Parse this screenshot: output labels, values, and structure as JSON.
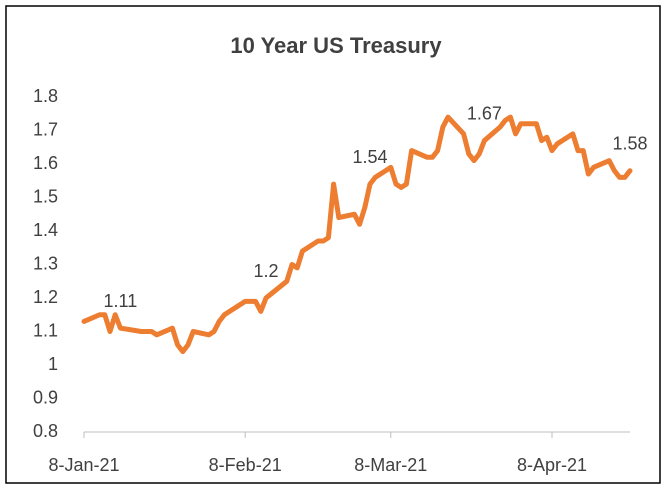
{
  "chart_data": {
    "type": "line",
    "title": "10 Year US Treasury",
    "x": [
      "2021-01-08",
      "2021-01-11",
      "2021-01-12",
      "2021-01-13",
      "2021-01-14",
      "2021-01-15",
      "2021-01-19",
      "2021-01-20",
      "2021-01-21",
      "2021-01-22",
      "2021-01-25",
      "2021-01-26",
      "2021-01-27",
      "2021-01-28",
      "2021-01-29",
      "2021-02-01",
      "2021-02-02",
      "2021-02-03",
      "2021-02-04",
      "2021-02-05",
      "2021-02-08",
      "2021-02-09",
      "2021-02-10",
      "2021-02-11",
      "2021-02-12",
      "2021-02-16",
      "2021-02-17",
      "2021-02-18",
      "2021-02-19",
      "2021-02-22",
      "2021-02-23",
      "2021-02-24",
      "2021-02-25",
      "2021-02-26",
      "2021-03-01",
      "2021-03-02",
      "2021-03-03",
      "2021-03-04",
      "2021-03-05",
      "2021-03-08",
      "2021-03-09",
      "2021-03-10",
      "2021-03-11",
      "2021-03-12",
      "2021-03-15",
      "2021-03-16",
      "2021-03-17",
      "2021-03-18",
      "2021-03-19",
      "2021-03-22",
      "2021-03-23",
      "2021-03-24",
      "2021-03-25",
      "2021-03-26",
      "2021-03-29",
      "2021-03-30",
      "2021-03-31",
      "2021-04-01",
      "2021-04-02",
      "2021-04-05",
      "2021-04-06",
      "2021-04-07",
      "2021-04-08",
      "2021-04-09",
      "2021-04-12",
      "2021-04-13",
      "2021-04-14",
      "2021-04-15",
      "2021-04-16",
      "2021-04-19",
      "2021-04-20",
      "2021-04-21",
      "2021-04-22",
      "2021-04-23"
    ],
    "series": [
      {
        "name": "10 Year US Treasury",
        "color": "#ed7d31",
        "values": [
          1.13,
          1.15,
          1.15,
          1.1,
          1.15,
          1.11,
          1.1,
          1.1,
          1.1,
          1.09,
          1.11,
          1.06,
          1.04,
          1.06,
          1.1,
          1.09,
          1.1,
          1.13,
          1.15,
          1.16,
          1.19,
          1.19,
          1.19,
          1.16,
          1.2,
          1.25,
          1.3,
          1.29,
          1.34,
          1.37,
          1.37,
          1.38,
          1.54,
          1.44,
          1.45,
          1.42,
          1.47,
          1.54,
          1.56,
          1.59,
          1.54,
          1.53,
          1.54,
          1.64,
          1.62,
          1.62,
          1.64,
          1.71,
          1.74,
          1.69,
          1.63,
          1.61,
          1.63,
          1.67,
          1.71,
          1.73,
          1.74,
          1.69,
          1.72,
          1.72,
          1.67,
          1.68,
          1.64,
          1.66,
          1.69,
          1.64,
          1.64,
          1.57,
          1.59,
          1.61,
          1.58,
          1.56,
          1.56,
          1.58
        ]
      }
    ],
    "data_label_indices": [
      5,
      24,
      37,
      53,
      73
    ],
    "xlim": [
      "2021-01-08",
      "2021-04-23"
    ],
    "xticks": [
      {
        "value": "2021-01-08",
        "label": "8-Jan-21"
      },
      {
        "value": "2021-02-08",
        "label": "8-Feb-21"
      },
      {
        "value": "2021-03-08",
        "label": "8-Mar-21"
      },
      {
        "value": "2021-04-08",
        "label": "8-Apr-21"
      }
    ],
    "ylim": [
      0.8,
      1.8
    ],
    "yticks": [
      0.8,
      0.9,
      1,
      1.1,
      1.2,
      1.3,
      1.4,
      1.5,
      1.6,
      1.7,
      1.8
    ],
    "grid": false
  }
}
